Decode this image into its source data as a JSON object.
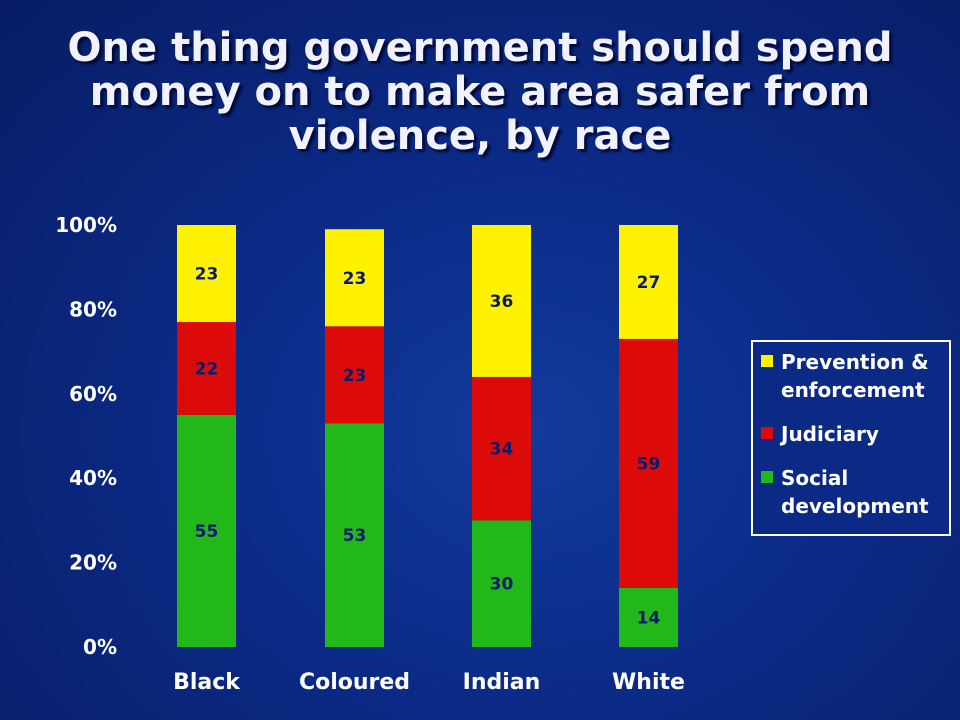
{
  "chart_data": {
    "type": "bar",
    "stacked": true,
    "title_lines": [
      "One thing government should spend",
      "money on to make area safer from",
      "violence, by race"
    ],
    "categories": [
      "Black",
      "Coloured",
      "Indian",
      "White"
    ],
    "series": [
      {
        "name": "Social development",
        "color": "#22b81a",
        "values": [
          55,
          53,
          30,
          14
        ]
      },
      {
        "name": "Judiciary",
        "color": "#dd0a0a",
        "values": [
          22,
          23,
          34,
          59
        ]
      },
      {
        "name": "Prevention & enforcement",
        "color": "#fff200",
        "values": [
          23,
          23,
          36,
          27
        ]
      }
    ],
    "legend_order": [
      "Prevention & enforcement",
      "Judiciary",
      "Social development"
    ],
    "y_ticks": [
      "0%",
      "20%",
      "40%",
      "60%",
      "80%",
      "100%"
    ],
    "ylim": [
      0,
      100
    ],
    "legend_position": "right",
    "grid": false
  }
}
